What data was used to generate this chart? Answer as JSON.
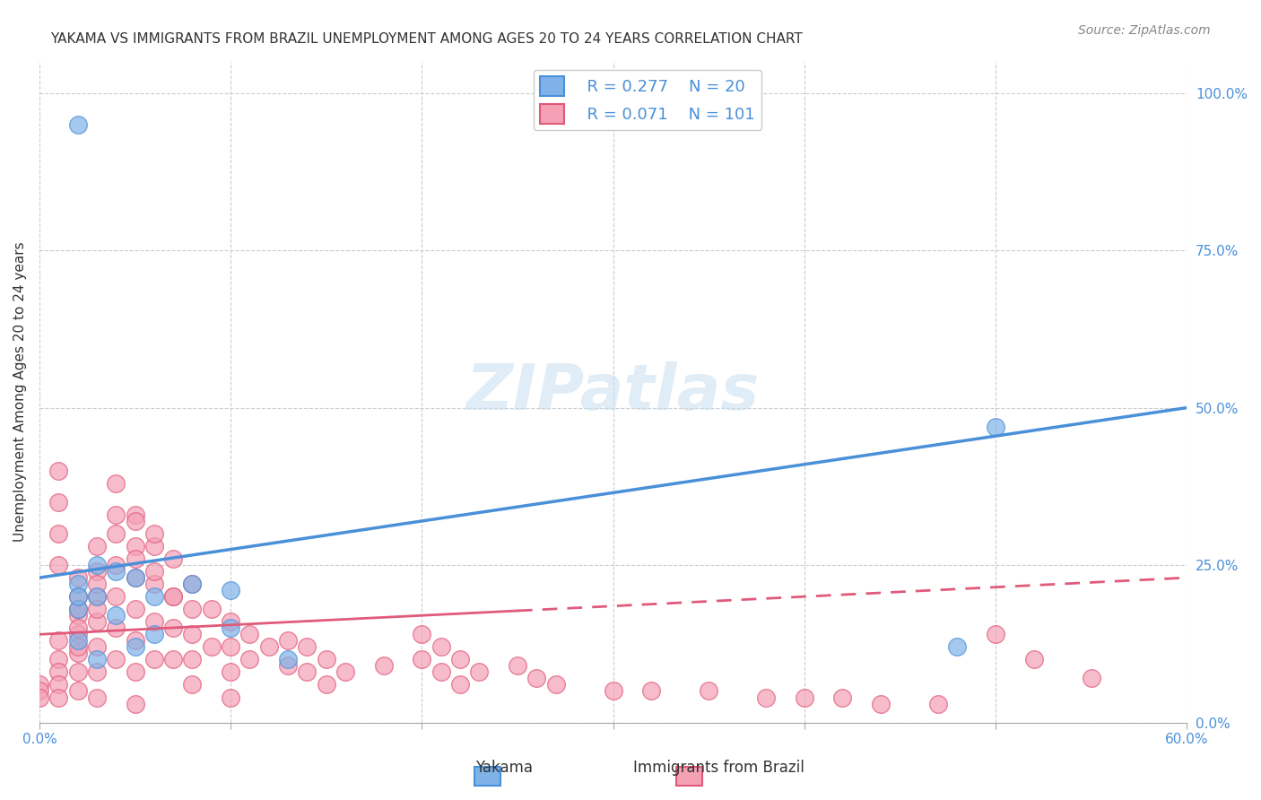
{
  "title": "YAKAMA VS IMMIGRANTS FROM BRAZIL UNEMPLOYMENT AMONG AGES 20 TO 24 YEARS CORRELATION CHART",
  "source": "Source: ZipAtlas.com",
  "xlabel_bottom": "",
  "ylabel": "Unemployment Among Ages 20 to 24 years",
  "x_min": 0.0,
  "x_max": 0.6,
  "y_min": 0.0,
  "y_max": 1.05,
  "x_ticks": [
    0.0,
    0.1,
    0.2,
    0.3,
    0.4,
    0.5,
    0.6
  ],
  "x_tick_labels": [
    "0.0%",
    "",
    "",
    "",
    "",
    "",
    "60.0%"
  ],
  "y_tick_labels_right": [
    "0.0%",
    "25.0%",
    "50.0%",
    "75.0%",
    "100.0%"
  ],
  "y_tick_vals_right": [
    0.0,
    0.25,
    0.5,
    0.75,
    1.0
  ],
  "yakama_color": "#7fb3e8",
  "brazil_color": "#f4a0b5",
  "yakama_line_color": "#4a90d9",
  "brazil_line_color": "#e05a7a",
  "legend_R_yakama": "R = 0.277",
  "legend_N_yakama": "N = 20",
  "legend_R_brazil": "R = 0.071",
  "legend_N_brazil": "N = 101",
  "watermark": "ZIPatlas",
  "yakama_scatter_x": [
    0.02,
    0.02,
    0.02,
    0.03,
    0.03,
    0.03,
    0.04,
    0.04,
    0.05,
    0.05,
    0.06,
    0.06,
    0.08,
    0.1,
    0.1,
    0.13,
    0.48,
    0.5,
    0.02,
    0.02
  ],
  "yakama_scatter_y": [
    0.22,
    0.18,
    0.13,
    0.25,
    0.2,
    0.1,
    0.24,
    0.17,
    0.23,
    0.12,
    0.2,
    0.14,
    0.22,
    0.21,
    0.15,
    0.1,
    0.12,
    0.47,
    0.95,
    0.2
  ],
  "brazil_scatter_x": [
    0.0,
    0.0,
    0.0,
    0.01,
    0.01,
    0.01,
    0.01,
    0.01,
    0.02,
    0.02,
    0.02,
    0.02,
    0.02,
    0.02,
    0.02,
    0.03,
    0.03,
    0.03,
    0.03,
    0.03,
    0.03,
    0.03,
    0.04,
    0.04,
    0.04,
    0.04,
    0.04,
    0.05,
    0.05,
    0.05,
    0.05,
    0.05,
    0.05,
    0.05,
    0.06,
    0.06,
    0.06,
    0.06,
    0.07,
    0.07,
    0.07,
    0.07,
    0.08,
    0.08,
    0.08,
    0.08,
    0.08,
    0.09,
    0.09,
    0.1,
    0.1,
    0.1,
    0.1,
    0.11,
    0.11,
    0.12,
    0.13,
    0.13,
    0.14,
    0.14,
    0.15,
    0.15,
    0.16,
    0.18,
    0.2,
    0.2,
    0.21,
    0.21,
    0.22,
    0.22,
    0.23,
    0.25,
    0.26,
    0.27,
    0.3,
    0.32,
    0.35,
    0.38,
    0.4,
    0.42,
    0.44,
    0.47,
    0.5,
    0.52,
    0.55,
    0.01,
    0.01,
    0.01,
    0.01,
    0.02,
    0.02,
    0.02,
    0.03,
    0.03,
    0.04,
    0.04,
    0.05,
    0.05,
    0.06,
    0.06,
    0.07
  ],
  "brazil_scatter_y": [
    0.06,
    0.05,
    0.04,
    0.13,
    0.1,
    0.08,
    0.06,
    0.04,
    0.23,
    0.2,
    0.17,
    0.14,
    0.11,
    0.08,
    0.05,
    0.28,
    0.24,
    0.2,
    0.16,
    0.12,
    0.08,
    0.04,
    0.3,
    0.25,
    0.2,
    0.15,
    0.1,
    0.33,
    0.28,
    0.23,
    0.18,
    0.13,
    0.08,
    0.03,
    0.28,
    0.22,
    0.16,
    0.1,
    0.26,
    0.2,
    0.15,
    0.1,
    0.22,
    0.18,
    0.14,
    0.1,
    0.06,
    0.18,
    0.12,
    0.16,
    0.12,
    0.08,
    0.04,
    0.14,
    0.1,
    0.12,
    0.13,
    0.09,
    0.12,
    0.08,
    0.1,
    0.06,
    0.08,
    0.09,
    0.14,
    0.1,
    0.12,
    0.08,
    0.1,
    0.06,
    0.08,
    0.09,
    0.07,
    0.06,
    0.05,
    0.05,
    0.05,
    0.04,
    0.04,
    0.04,
    0.03,
    0.03,
    0.14,
    0.1,
    0.07,
    0.4,
    0.35,
    0.3,
    0.25,
    0.18,
    0.15,
    0.12,
    0.22,
    0.18,
    0.38,
    0.33,
    0.32,
    0.26,
    0.3,
    0.24,
    0.2
  ],
  "yakama_trendline_x": [
    0.0,
    0.6
  ],
  "yakama_trendline_y": [
    0.23,
    0.5
  ],
  "brazil_trendline_x": [
    0.0,
    0.6
  ],
  "brazil_trendline_y": [
    0.14,
    0.23
  ],
  "brazil_trendline_solid_x_end": 0.25,
  "background_color": "#ffffff",
  "grid_color": "#cccccc",
  "title_fontsize": 11,
  "axis_label_fontsize": 11,
  "tick_fontsize": 11,
  "source_fontsize": 10
}
